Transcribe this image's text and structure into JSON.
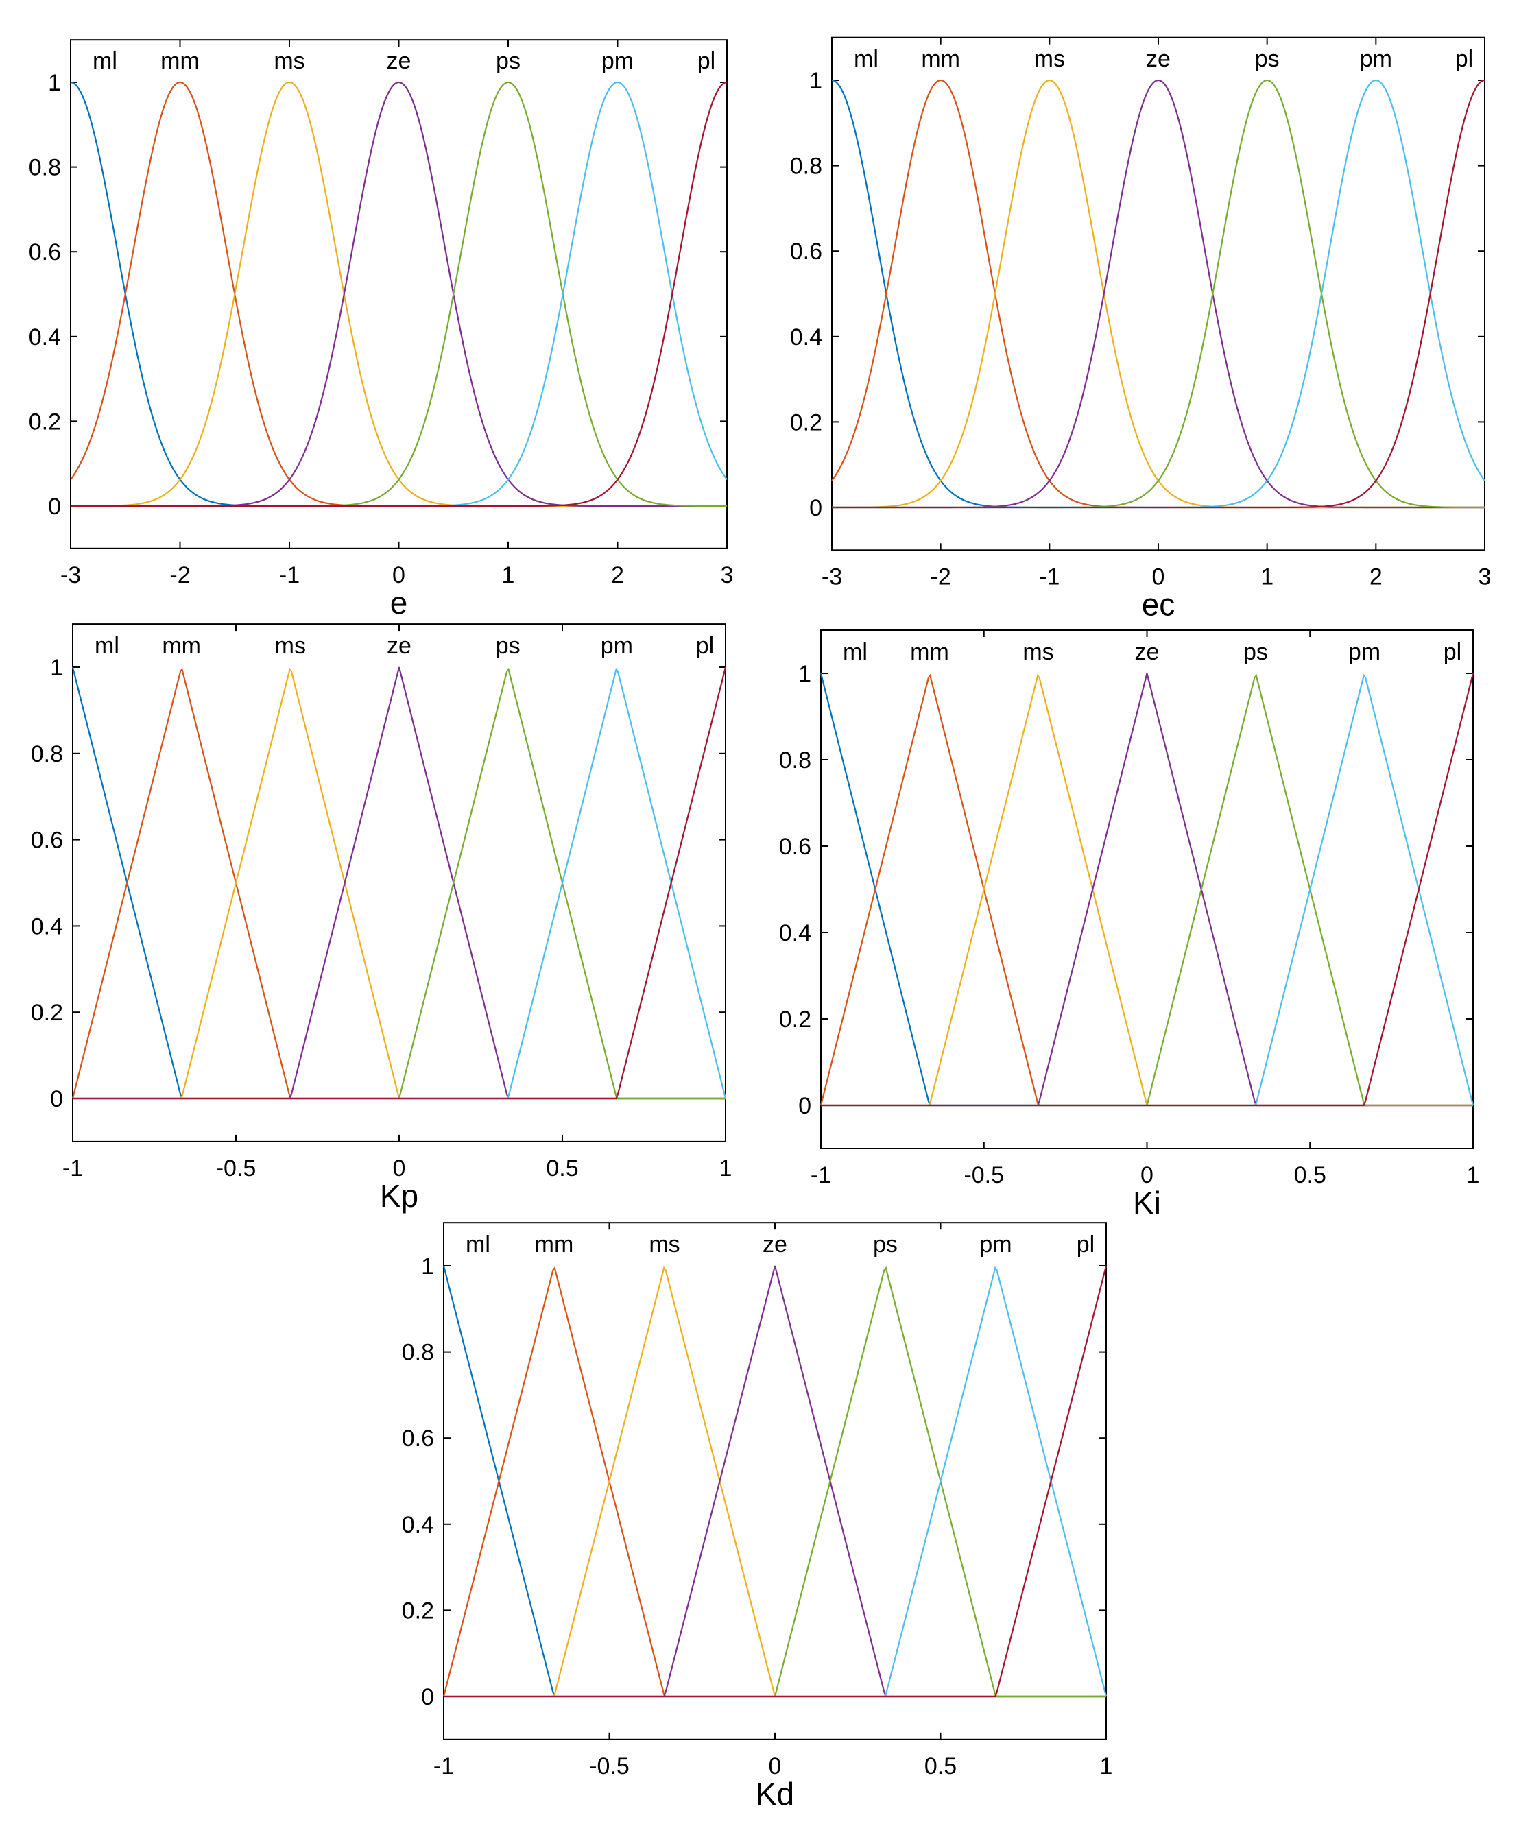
{
  "chart_data": [
    {
      "type": "line",
      "title": "",
      "xlabel": "e",
      "ylabel": "",
      "xlim": [
        -3,
        3
      ],
      "ylim": [
        -0.1,
        1.1
      ],
      "xticks": [
        "-3",
        "-2",
        "-1",
        "0",
        "1",
        "2",
        "3"
      ],
      "yticks": [
        "0",
        "0.2",
        "0.4",
        "0.6",
        "0.8",
        "1"
      ],
      "grid": false,
      "membership_shape": "gaussian",
      "gaussian_sigma": 0.4247,
      "series": [
        {
          "name": "ml",
          "center": -3,
          "color": "#0072BD"
        },
        {
          "name": "mm",
          "center": -2,
          "color": "#D95319"
        },
        {
          "name": "ms",
          "center": -1,
          "color": "#EDB120"
        },
        {
          "name": "ze",
          "center": 0,
          "color": "#7E2F8E"
        },
        {
          "name": "ps",
          "center": 1,
          "color": "#77AC30"
        },
        {
          "name": "pm",
          "center": 2,
          "color": "#4DBEEE"
        },
        {
          "name": "pl",
          "center": 3,
          "color": "#A2142F"
        }
      ]
    },
    {
      "type": "line",
      "title": "",
      "xlabel": "ec",
      "ylabel": "",
      "xlim": [
        -3,
        3
      ],
      "ylim": [
        -0.1,
        1.1
      ],
      "xticks": [
        "-3",
        "-2",
        "-1",
        "0",
        "1",
        "2",
        "3"
      ],
      "yticks": [
        "0",
        "0.2",
        "0.4",
        "0.6",
        "0.8",
        "1"
      ],
      "grid": false,
      "membership_shape": "gaussian",
      "gaussian_sigma": 0.4247,
      "series": [
        {
          "name": "ml",
          "center": -3,
          "color": "#0072BD"
        },
        {
          "name": "mm",
          "center": -2,
          "color": "#D95319"
        },
        {
          "name": "ms",
          "center": -1,
          "color": "#EDB120"
        },
        {
          "name": "ze",
          "center": 0,
          "color": "#7E2F8E"
        },
        {
          "name": "ps",
          "center": 1,
          "color": "#77AC30"
        },
        {
          "name": "pm",
          "center": 2,
          "color": "#4DBEEE"
        },
        {
          "name": "pl",
          "center": 3,
          "color": "#A2142F"
        }
      ]
    },
    {
      "type": "line",
      "title": "",
      "xlabel": "Kp",
      "ylabel": "",
      "xlim": [
        -1,
        1
      ],
      "ylim": [
        -0.1,
        1.1
      ],
      "xticks": [
        "-1",
        "-0.5",
        "0",
        "0.5",
        "1"
      ],
      "yticks": [
        "0",
        "0.2",
        "0.4",
        "0.6",
        "0.8",
        "1"
      ],
      "grid": false,
      "membership_shape": "triangular",
      "triangle_half_width": 0.3333,
      "series": [
        {
          "name": "ml",
          "center": -1,
          "color": "#0072BD"
        },
        {
          "name": "mm",
          "center": -0.6667,
          "color": "#D95319"
        },
        {
          "name": "ms",
          "center": -0.3333,
          "color": "#EDB120"
        },
        {
          "name": "ze",
          "center": 0,
          "color": "#7E2F8E"
        },
        {
          "name": "ps",
          "center": 0.3333,
          "color": "#77AC30"
        },
        {
          "name": "pm",
          "center": 0.6667,
          "color": "#4DBEEE"
        },
        {
          "name": "pl",
          "center": 1,
          "color": "#A2142F"
        }
      ]
    },
    {
      "type": "line",
      "title": "",
      "xlabel": "Ki",
      "ylabel": "",
      "xlim": [
        -1,
        1
      ],
      "ylim": [
        -0.1,
        1.1
      ],
      "xticks": [
        "-1",
        "-0.5",
        "0",
        "0.5",
        "1"
      ],
      "yticks": [
        "0",
        "0.2",
        "0.4",
        "0.6",
        "0.8",
        "1"
      ],
      "grid": false,
      "membership_shape": "triangular",
      "triangle_half_width": 0.3333,
      "series": [
        {
          "name": "ml",
          "center": -1,
          "color": "#0072BD"
        },
        {
          "name": "mm",
          "center": -0.6667,
          "color": "#D95319"
        },
        {
          "name": "ms",
          "center": -0.3333,
          "color": "#EDB120"
        },
        {
          "name": "ze",
          "center": 0,
          "color": "#7E2F8E"
        },
        {
          "name": "ps",
          "center": 0.3333,
          "color": "#77AC30"
        },
        {
          "name": "pm",
          "center": 0.6667,
          "color": "#4DBEEE"
        },
        {
          "name": "pl",
          "center": 1,
          "color": "#A2142F"
        }
      ]
    },
    {
      "type": "line",
      "title": "",
      "xlabel": "Kd",
      "ylabel": "",
      "xlim": [
        -1,
        1
      ],
      "ylim": [
        -0.1,
        1.1
      ],
      "xticks": [
        "-1",
        "-0.5",
        "0",
        "0.5",
        "1"
      ],
      "yticks": [
        "0",
        "0.2",
        "0.4",
        "0.6",
        "0.8",
        "1"
      ],
      "grid": false,
      "membership_shape": "triangular",
      "triangle_half_width": 0.3333,
      "series": [
        {
          "name": "ml",
          "center": -1,
          "color": "#0072BD"
        },
        {
          "name": "mm",
          "center": -0.6667,
          "color": "#D95319"
        },
        {
          "name": "ms",
          "center": -0.3333,
          "color": "#EDB120"
        },
        {
          "name": "ze",
          "center": 0,
          "color": "#7E2F8E"
        },
        {
          "name": "ps",
          "center": 0.3333,
          "color": "#77AC30"
        },
        {
          "name": "pm",
          "center": 0.6667,
          "color": "#4DBEEE"
        },
        {
          "name": "pl",
          "center": 1,
          "color": "#A2142F"
        }
      ]
    }
  ]
}
